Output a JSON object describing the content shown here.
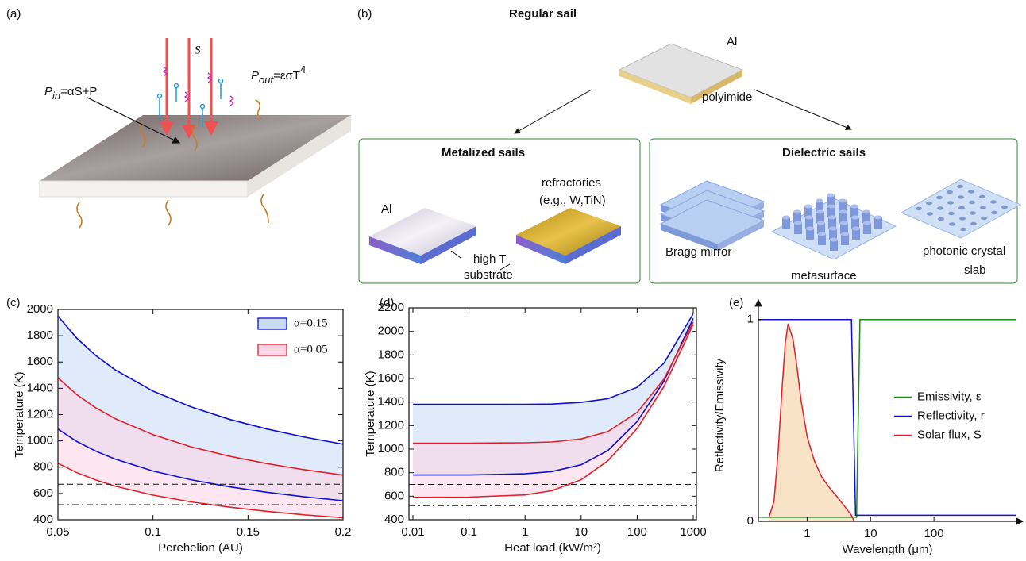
{
  "panel_a": {
    "label": "(a)",
    "flux": "S",
    "p_in": {
      "symbol": "P",
      "sub": "in",
      "rest": "=αS+P"
    },
    "p_out": {
      "symbol": "P",
      "sub": "out",
      "rest": "=εσT",
      "sup": "4"
    }
  },
  "panel_b": {
    "label": "(b)",
    "regular": "Regular sail",
    "al": "Al",
    "polyimide": "polyimide",
    "metal_title": "Metalized sails",
    "metal_al": "Al",
    "refractories": [
      "refractories",
      "(e.g., W,TiN)"
    ],
    "substrate": [
      "high T",
      "substrate"
    ],
    "dielectric_title": "Dielectric sails",
    "bragg": "Bragg mirror",
    "metasurface": "metasurface",
    "photonic": [
      "photonic crystal",
      "slab"
    ]
  },
  "chart_data": [
    {
      "type": "area",
      "label": "(c)",
      "xlabel": "Perehelion (AU)",
      "ylabel": "Temperature (K)",
      "x": [
        0.05,
        0.06,
        0.07,
        0.08,
        0.1,
        0.12,
        0.14,
        0.16,
        0.18,
        0.2
      ],
      "xlim": [
        0.05,
        0.2
      ],
      "xticks": [
        0.05,
        0.1,
        0.15,
        0.2
      ],
      "ylim": [
        400,
        2000
      ],
      "yticks": [
        400,
        600,
        800,
        1000,
        1200,
        1400,
        1600,
        1800,
        2000
      ],
      "legend": "upper right",
      "series": [
        {
          "name": "α=0.15",
          "color": "#1010d0",
          "fill": "#c9dcf7",
          "upper": [
            1950,
            1780,
            1648,
            1542,
            1379,
            1259,
            1165,
            1090,
            1028,
            975
          ],
          "lower": [
            1090,
            995,
            921,
            862,
            771,
            704,
            651,
            609,
            574,
            545
          ]
        },
        {
          "name": "α=0.05",
          "color": "#e3202a",
          "fill": "#fbd6e6",
          "upper": [
            1480,
            1351,
            1251,
            1170,
            1047,
            955,
            884,
            827,
            780,
            740
          ],
          "lower": [
            830,
            758,
            702,
            656,
            587,
            536,
            496,
            464,
            437,
            415
          ]
        }
      ],
      "hlines": [
        {
          "value": 670,
          "style": "dashed"
        },
        {
          "value": 515,
          "style": "dashdot"
        }
      ]
    },
    {
      "type": "area",
      "label": "(d)",
      "xlabel": "Heat load (kW/m²)",
      "ylabel": "Temperature (K)",
      "x": [
        0.01,
        0.1,
        1,
        3,
        10,
        30,
        100,
        300,
        1000
      ],
      "xscale": "log",
      "xlim": [
        0.01,
        1000
      ],
      "xticks": [
        0.01,
        0.1,
        1,
        10,
        100,
        1000
      ],
      "ylim": [
        400,
        2200
      ],
      "yticks": [
        400,
        600,
        800,
        1000,
        1200,
        1400,
        1600,
        1800,
        2000,
        2200
      ],
      "series": [
        {
          "color": "#1010d0",
          "fill": "#c9dcf7",
          "upper": [
            1380,
            1380,
            1381,
            1383,
            1397,
            1428,
            1525,
            1730,
            2150
          ],
          "lower": [
            780,
            780,
            790,
            809,
            867,
            988,
            1234,
            1578,
            2110
          ]
        },
        {
          "color": "#e3202a",
          "fill": "#fbd6e6",
          "upper": [
            1050,
            1050,
            1054,
            1061,
            1086,
            1149,
            1312,
            1595,
            2080
          ],
          "lower": [
            590,
            592,
            611,
            647,
            740,
            901,
            1176,
            1531,
            2060
          ]
        }
      ],
      "hlines": [
        {
          "value": 700,
          "style": "dashed"
        },
        {
          "value": 520,
          "style": "dashdot"
        }
      ]
    },
    {
      "type": "line",
      "label": "(e)",
      "xlabel": "Wavelength (μm)",
      "ylabel": "Reflectivity/Emissivity",
      "xscale": "log",
      "xlim": [
        0.17,
        2000
      ],
      "xticks": [
        1,
        10,
        100
      ],
      "ylim": [
        0,
        1.05
      ],
      "yticks": [
        0,
        1
      ],
      "legend": "center right",
      "series": [
        {
          "name": "Emissivity, ε",
          "color": "#1a8a1a",
          "x": [
            0.17,
            6,
            6.8,
            2000
          ],
          "values": [
            0.02,
            0.02,
            1,
            1
          ]
        },
        {
          "name": "Reflectivity, r",
          "color": "#1010d0",
          "x": [
            0.17,
            5,
            5.8,
            2000
          ],
          "values": [
            1,
            1,
            0.03,
            0.03
          ]
        },
        {
          "name": "Solar flux, S",
          "color": "#e3202a",
          "fill": "#f9e3c6",
          "x": [
            0.25,
            0.3,
            0.35,
            0.4,
            0.45,
            0.5,
            0.6,
            0.7,
            0.8,
            1,
            1.3,
            1.7,
            2.2,
            3,
            4,
            5,
            5.5
          ],
          "values": [
            0.02,
            0.1,
            0.35,
            0.65,
            0.88,
            0.98,
            0.9,
            0.75,
            0.6,
            0.42,
            0.3,
            0.22,
            0.17,
            0.12,
            0.07,
            0.03,
            0
          ]
        }
      ]
    }
  ]
}
